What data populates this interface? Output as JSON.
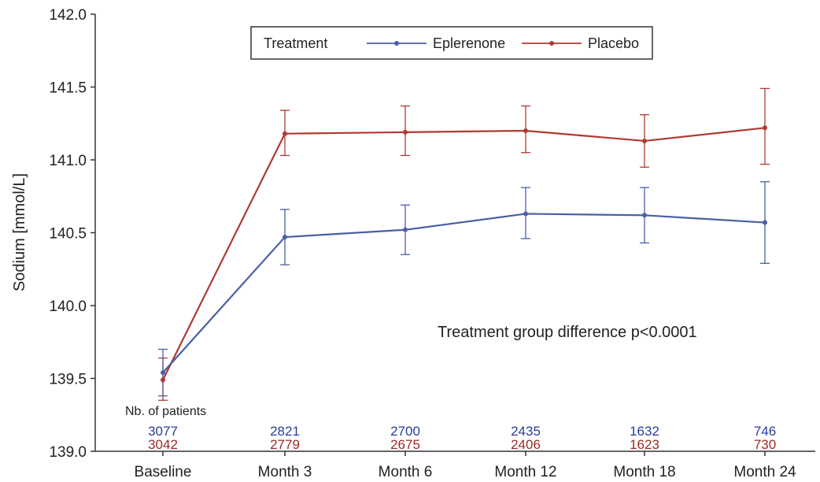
{
  "chart_data": {
    "type": "line",
    "title": "",
    "xlabel": "",
    "ylabel": "Sodium [mmol/L]",
    "ylim": [
      139.0,
      142.0
    ],
    "yticks": [
      "139.0",
      "139.5",
      "140.0",
      "140.5",
      "141.0",
      "141.5",
      "142.0"
    ],
    "categories": [
      "Baseline",
      "Month 3",
      "Month 6",
      "Month 12",
      "Month 18",
      "Month 24"
    ],
    "legend": {
      "title": "Treatment",
      "placement": "top-center"
    },
    "series": [
      {
        "name": "Eplerenone",
        "color": "#4a5fa6",
        "values": [
          139.54,
          140.47,
          140.52,
          140.63,
          140.62,
          140.57
        ],
        "error_low": [
          139.38,
          140.28,
          140.35,
          140.46,
          140.43,
          140.29
        ],
        "error_high": [
          139.7,
          140.66,
          140.69,
          140.81,
          140.81,
          140.85
        ],
        "patients": [
          "3077",
          "2821",
          "2700",
          "2435",
          "1632",
          "746"
        ],
        "patients_color": "#2a3c99"
      },
      {
        "name": "Placebo",
        "color": "#b03a32",
        "values": [
          139.49,
          141.18,
          141.19,
          141.2,
          141.13,
          141.22
        ],
        "error_low": [
          139.35,
          141.03,
          141.03,
          141.05,
          140.95,
          140.97
        ],
        "error_high": [
          139.64,
          141.34,
          141.37,
          141.37,
          141.31,
          141.49
        ],
        "patients": [
          "3042",
          "2779",
          "2675",
          "2406",
          "1623",
          "730"
        ],
        "patients_color": "#9a2a24"
      }
    ],
    "annotation": "Treatment group difference p<0.0001",
    "patients_label": "Nb. of patients",
    "grid": false
  }
}
